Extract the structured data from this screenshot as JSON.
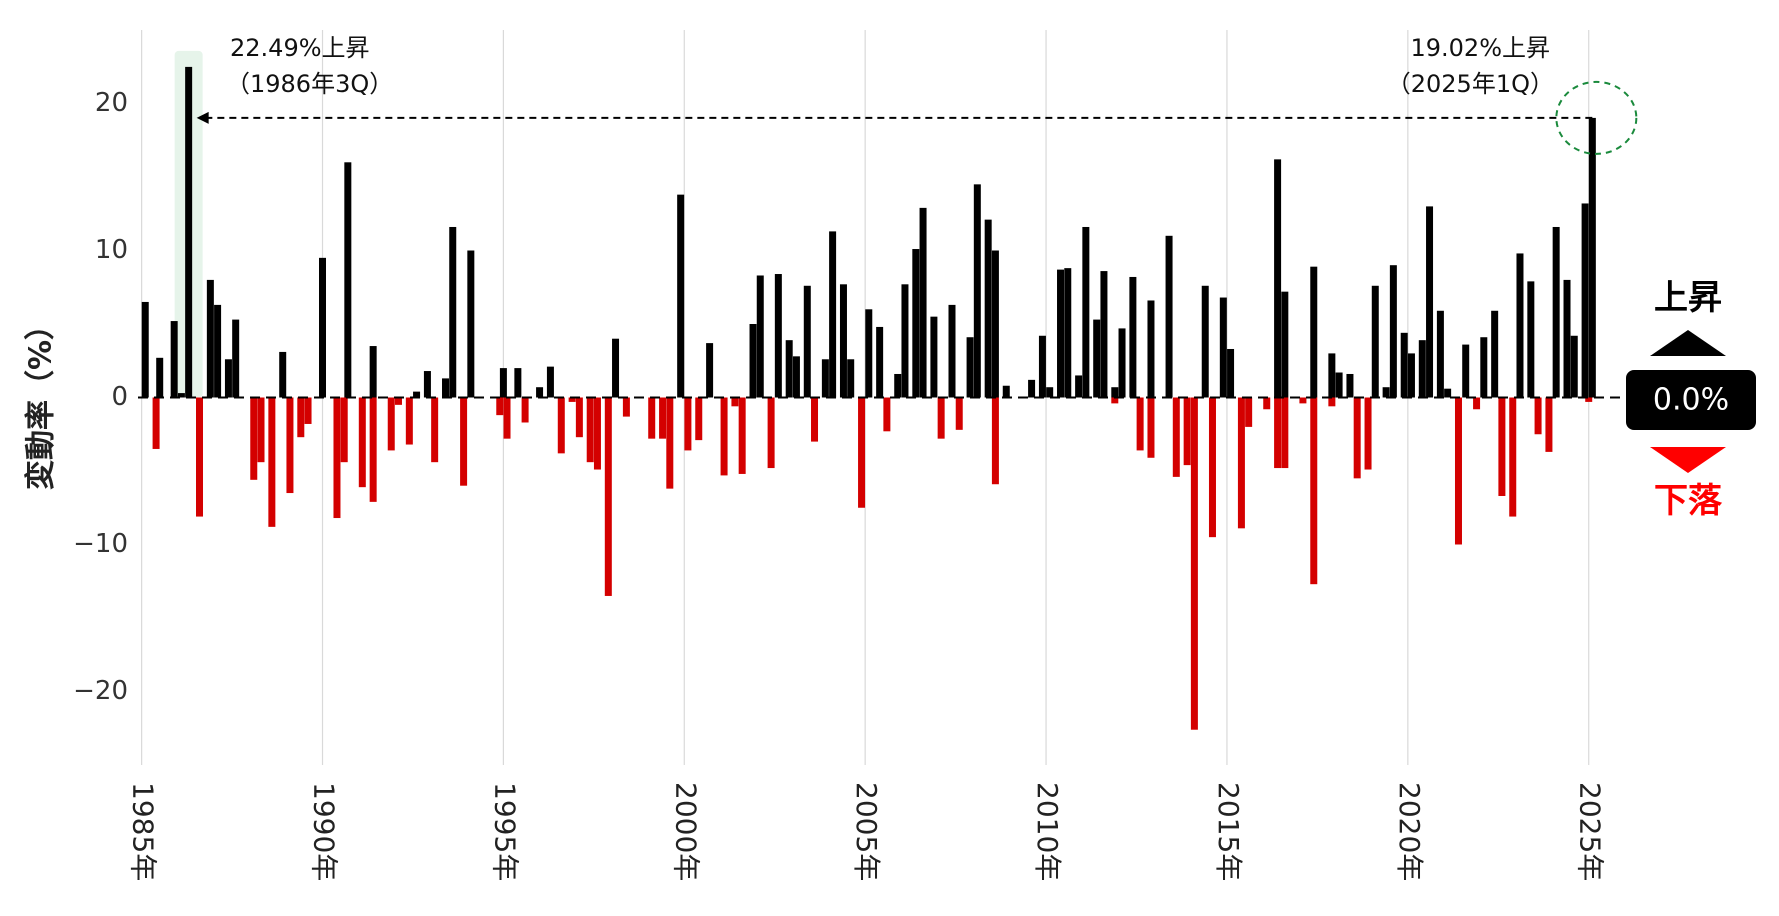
{
  "chart_data": {
    "type": "bar",
    "title": "",
    "ylabel": "変動率（%）",
    "xlabel": "",
    "ylim": [
      -25,
      25
    ],
    "yticks": [
      20,
      10,
      0,
      -10,
      -20
    ],
    "ytick_labels": [
      "20",
      "10",
      "0",
      "−10",
      "−20"
    ],
    "x_start": 1985.0,
    "x_end": 2025.25,
    "xticks": [
      1985,
      1990,
      1995,
      2000,
      2005,
      2010,
      2015,
      2020,
      2025
    ],
    "xtick_labels": [
      "1985年",
      "1990年",
      "1995年",
      "2000年",
      "2005年",
      "2010年",
      "2015年",
      "2020年",
      "2025年"
    ],
    "grid": true,
    "positive_color": "#000000",
    "negative_color": "#d40000",
    "series": [
      {
        "name": "上昇",
        "color": "#000000",
        "points": [
          [
            1985.1,
            6.5
          ],
          [
            1985.5,
            2.7
          ],
          [
            1985.9,
            5.2
          ],
          [
            1986.1,
            0.3
          ],
          [
            1986.3,
            22.49
          ],
          [
            1986.9,
            8.0
          ],
          [
            1987.1,
            6.3
          ],
          [
            1987.4,
            2.6
          ],
          [
            1987.6,
            5.3
          ],
          [
            1988.9,
            3.1
          ],
          [
            1990.0,
            9.5
          ],
          [
            1990.7,
            16.0
          ],
          [
            1991.4,
            3.5
          ],
          [
            1992.6,
            0.4
          ],
          [
            1992.9,
            1.8
          ],
          [
            1993.4,
            1.3
          ],
          [
            1993.6,
            11.6
          ],
          [
            1994.1,
            10.0
          ],
          [
            1995.0,
            2.0
          ],
          [
            1995.4,
            2.0
          ],
          [
            1996.0,
            0.7
          ],
          [
            1996.3,
            2.1
          ],
          [
            1998.1,
            4.0
          ],
          [
            1999.9,
            13.8
          ],
          [
            2000.7,
            3.7
          ],
          [
            2001.9,
            5.0
          ],
          [
            2002.1,
            8.3
          ],
          [
            2002.6,
            8.4
          ],
          [
            2002.9,
            3.9
          ],
          [
            2003.1,
            2.8
          ],
          [
            2003.4,
            7.6
          ],
          [
            2003.9,
            2.6
          ],
          [
            2004.1,
            11.3
          ],
          [
            2004.4,
            7.7
          ],
          [
            2004.6,
            2.6
          ],
          [
            2005.1,
            6.0
          ],
          [
            2005.4,
            4.8
          ],
          [
            2005.9,
            1.6
          ],
          [
            2006.1,
            7.7
          ],
          [
            2006.4,
            10.1
          ],
          [
            2006.6,
            12.9
          ],
          [
            2006.9,
            5.5
          ],
          [
            2007.4,
            6.3
          ],
          [
            2007.9,
            4.1
          ],
          [
            2008.1,
            14.5
          ],
          [
            2008.4,
            12.1
          ],
          [
            2008.6,
            10.0
          ],
          [
            2008.9,
            0.8
          ],
          [
            2009.6,
            1.2
          ],
          [
            2009.9,
            4.2
          ],
          [
            2010.1,
            0.7
          ],
          [
            2010.4,
            8.7
          ],
          [
            2010.6,
            8.8
          ],
          [
            2010.9,
            1.5
          ],
          [
            2011.1,
            11.6
          ],
          [
            2011.4,
            5.3
          ],
          [
            2011.6,
            8.6
          ],
          [
            2011.9,
            0.7
          ],
          [
            2012.1,
            4.7
          ],
          [
            2012.4,
            8.2
          ],
          [
            2012.9,
            6.6
          ],
          [
            2013.4,
            11.0
          ],
          [
            2014.4,
            7.6
          ],
          [
            2014.9,
            6.8
          ],
          [
            2015.1,
            3.3
          ],
          [
            2016.4,
            16.2
          ],
          [
            2016.6,
            7.2
          ],
          [
            2017.4,
            8.9
          ],
          [
            2017.9,
            3.0
          ],
          [
            2018.1,
            1.7
          ],
          [
            2018.4,
            1.6
          ],
          [
            2019.1,
            7.6
          ],
          [
            2019.4,
            0.7
          ],
          [
            2019.6,
            9.0
          ],
          [
            2019.9,
            4.4
          ],
          [
            2020.1,
            3.0
          ],
          [
            2020.4,
            3.9
          ],
          [
            2020.6,
            13.0
          ],
          [
            2020.9,
            5.9
          ],
          [
            2021.1,
            0.6
          ],
          [
            2021.6,
            3.6
          ],
          [
            2022.1,
            4.1
          ],
          [
            2022.4,
            5.9
          ],
          [
            2023.1,
            9.8
          ],
          [
            2023.4,
            7.9
          ],
          [
            2024.1,
            11.6
          ],
          [
            2024.4,
            8.0
          ],
          [
            2024.6,
            4.2
          ],
          [
            2024.9,
            13.2
          ],
          [
            2025.1,
            19.02
          ]
        ]
      },
      {
        "name": "下落",
        "color": "#d40000",
        "points": [
          [
            1985.4,
            -3.5
          ],
          [
            1986.6,
            -8.1
          ],
          [
            1988.1,
            -5.6
          ],
          [
            1988.3,
            -4.4
          ],
          [
            1988.6,
            -8.8
          ],
          [
            1989.1,
            -6.5
          ],
          [
            1989.4,
            -2.7
          ],
          [
            1989.6,
            -1.8
          ],
          [
            1990.4,
            -8.2
          ],
          [
            1990.6,
            -4.4
          ],
          [
            1991.1,
            -6.1
          ],
          [
            1991.4,
            -7.1
          ],
          [
            1991.9,
            -3.6
          ],
          [
            1992.1,
            -0.5
          ],
          [
            1992.4,
            -3.2
          ],
          [
            1993.1,
            -4.4
          ],
          [
            1993.9,
            -6.0
          ],
          [
            1994.9,
            -1.2
          ],
          [
            1995.1,
            -2.8
          ],
          [
            1995.6,
            -1.7
          ],
          [
            1996.6,
            -3.8
          ],
          [
            1996.9,
            -0.3
          ],
          [
            1997.1,
            -2.7
          ],
          [
            1997.4,
            -4.4
          ],
          [
            1997.6,
            -4.9
          ],
          [
            1997.9,
            -13.5
          ],
          [
            1998.4,
            -1.3
          ],
          [
            1999.1,
            -2.8
          ],
          [
            1999.4,
            -2.8
          ],
          [
            1999.6,
            -6.2
          ],
          [
            2000.1,
            -3.6
          ],
          [
            2000.4,
            -2.9
          ],
          [
            2001.1,
            -5.3
          ],
          [
            2001.4,
            -0.6
          ],
          [
            2001.6,
            -5.2
          ],
          [
            2002.4,
            -4.8
          ],
          [
            2003.6,
            -3.0
          ],
          [
            2004.9,
            -7.5
          ],
          [
            2005.6,
            -2.3
          ],
          [
            2007.1,
            -2.8
          ],
          [
            2007.6,
            -2.2
          ],
          [
            2008.6,
            -5.9
          ],
          [
            2011.9,
            -0.4
          ],
          [
            2012.6,
            -3.6
          ],
          [
            2012.9,
            -4.1
          ],
          [
            2013.6,
            -5.4
          ],
          [
            2013.9,
            -4.6
          ],
          [
            2014.1,
            -22.6
          ],
          [
            2014.6,
            -9.5
          ],
          [
            2015.4,
            -8.9
          ],
          [
            2015.6,
            -2.0
          ],
          [
            2016.1,
            -0.8
          ],
          [
            2016.4,
            -4.8
          ],
          [
            2016.6,
            -4.8
          ],
          [
            2017.1,
            -0.4
          ],
          [
            2017.4,
            -12.7
          ],
          [
            2017.9,
            -0.6
          ],
          [
            2018.6,
            -5.5
          ],
          [
            2018.9,
            -4.9
          ],
          [
            2021.4,
            -10.0
          ],
          [
            2021.9,
            -0.8
          ],
          [
            2022.6,
            -6.7
          ],
          [
            2022.9,
            -8.1
          ],
          [
            2023.6,
            -2.5
          ],
          [
            2023.9,
            -3.7
          ],
          [
            2025.0,
            -0.3
          ]
        ]
      }
    ],
    "reference_line": {
      "value": 19.02,
      "from_x": 1986.3,
      "to_x": 2025.1,
      "style": "dashed"
    },
    "annotations": [
      {
        "x": 1986.3,
        "line1": "22.49%上昇",
        "line2": "（1986年3Q）",
        "style": "highlight"
      },
      {
        "x": 2025.1,
        "line1": "19.02%上昇",
        "line2": "（2025年1Q）",
        "style": "circle"
      }
    ],
    "legend": {
      "up_label": "上昇",
      "down_label": "下落",
      "zero_label": "0.0%",
      "placement": "right"
    }
  }
}
